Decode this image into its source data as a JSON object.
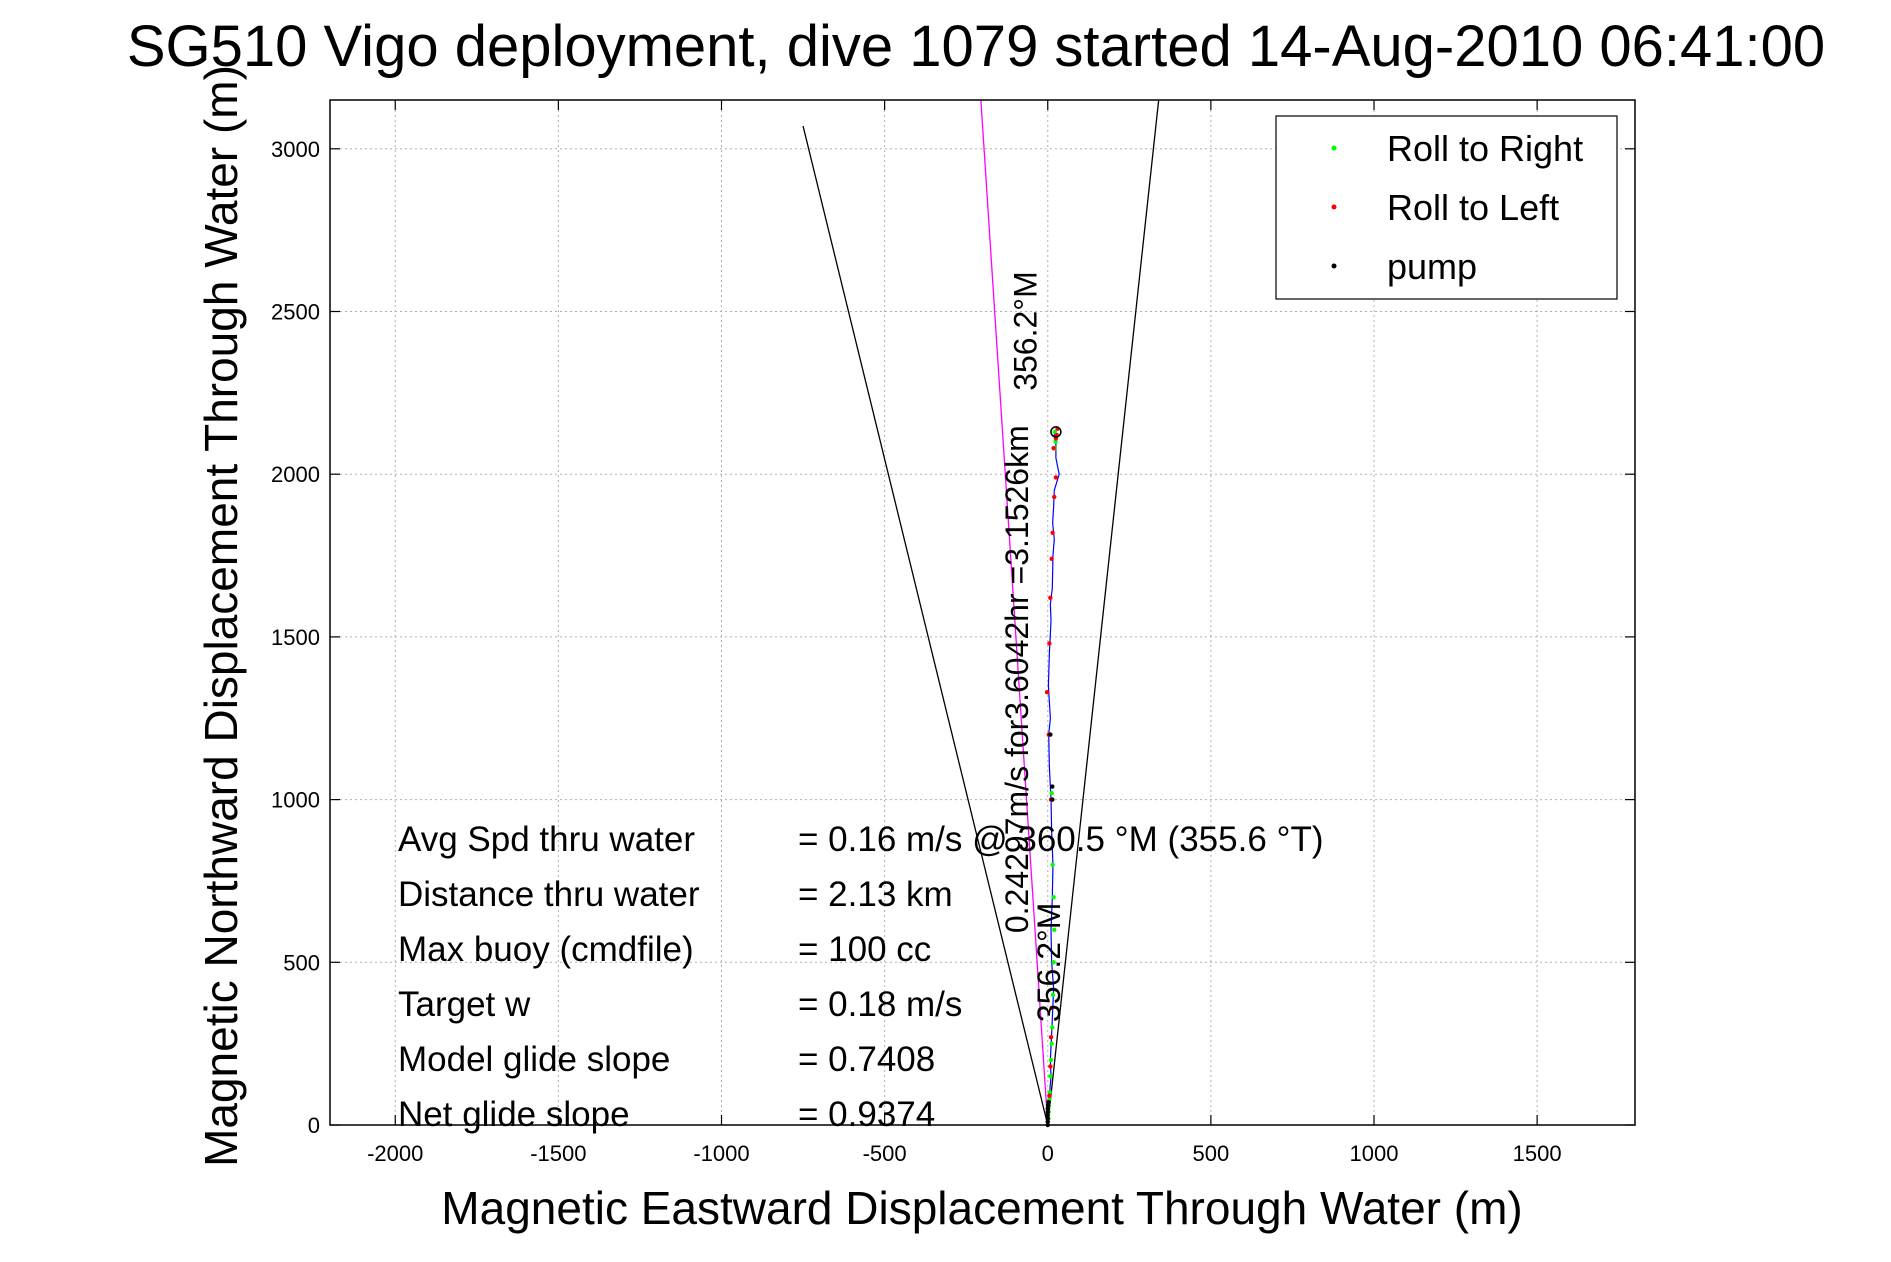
{
  "chart_data": {
    "type": "line",
    "title": "SG510 Vigo deployment, dive 1079 started 14-Aug-2010 06:41:00",
    "xlabel": "Magnetic Eastward Displacement Through Water (m)",
    "ylabel": "Magnetic Northward Displacement Through Water (m)",
    "xlim": [
      -2200,
      1800
    ],
    "ylim": [
      0,
      3150
    ],
    "xticks": [
      -2000,
      -1500,
      -1000,
      -500,
      0,
      500,
      1000,
      1500
    ],
    "yticks": [
      0,
      500,
      1000,
      1500,
      2000,
      2500,
      3000
    ],
    "xtick_labels": [
      "-2000",
      "-1500",
      "-1000",
      "-500",
      "0",
      "500",
      "1000",
      "1500"
    ],
    "ytick_labels": [
      "0",
      "500",
      "1000",
      "1500",
      "2000",
      "2500",
      "3000"
    ],
    "grid": true,
    "legend_position": "top-right",
    "legend": [
      {
        "label": "Roll to Right",
        "color": "#00ff00"
      },
      {
        "label": "Roll to Left",
        "color": "#ff0000"
      },
      {
        "label": "pump",
        "color": "#000000"
      }
    ],
    "track": {
      "name": "",
      "color": "#0000ff",
      "x": [
        0,
        3,
        6,
        10,
        8,
        12,
        15,
        18,
        12,
        10,
        14,
        16,
        12,
        10,
        5,
        3,
        8,
        5,
        2,
        5,
        10,
        8,
        14,
        16,
        20,
        15,
        18,
        20,
        35,
        25,
        25,
        20,
        25,
        28
      ],
      "y": [
        0,
        50,
        100,
        150,
        200,
        280,
        350,
        420,
        500,
        600,
        700,
        800,
        900,
        1000,
        1100,
        1200,
        1250,
        1300,
        1350,
        1450,
        1550,
        1600,
        1650,
        1750,
        1800,
        1850,
        1900,
        1950,
        2000,
        2050,
        2100,
        2120,
        2130,
        2120
      ]
    },
    "roll_to_right": {
      "x": [
        0,
        2,
        3,
        4,
        5,
        6,
        8,
        10,
        12,
        14,
        16,
        18,
        20,
        18,
        15,
        12,
        22,
        24,
        22
      ],
      "y": [
        0,
        20,
        40,
        60,
        80,
        100,
        150,
        200,
        250,
        300,
        400,
        500,
        600,
        700,
        800,
        1020,
        2080,
        2100,
        2130
      ]
    },
    "roll_to_left": {
      "x": [
        0,
        5,
        8,
        10,
        12,
        10,
        3,
        -2,
        5,
        8,
        12,
        15,
        20,
        25,
        18,
        28,
        30,
        25
      ],
      "y": [
        10,
        90,
        180,
        270,
        360,
        1000,
        1200,
        1330,
        1480,
        1620,
        1740,
        1820,
        1930,
        1990,
        2080,
        2120,
        2140,
        2110
      ]
    },
    "pump": {
      "x": [
        0,
        0,
        0,
        0,
        0,
        0,
        1,
        2,
        14,
        14,
        8
      ],
      "y": [
        0,
        10,
        20,
        30,
        40,
        50,
        60,
        70,
        1000,
        1040,
        1200
      ]
    },
    "reference_lines": [
      {
        "name": "",
        "color": "#ff00ff",
        "x": [
          0,
          -205
        ],
        "y": [
          0,
          3150
        ]
      },
      {
        "name": "",
        "color": "#000000",
        "x": [
          0,
          -750
        ],
        "y": [
          0,
          3070
        ]
      },
      {
        "name": "",
        "color": "#000000",
        "x": [
          0,
          340
        ],
        "y": [
          0,
          3150
        ]
      }
    ],
    "rotated_labels": [
      {
        "text": "356.2°M",
        "x": -35,
        "y": 2440
      },
      {
        "text": "0.24297m/s for3.6042hr =3.1526km",
        "x": -60,
        "y": 1370
      },
      {
        "text": "356.2°M",
        "x": 38,
        "y": 500
      }
    ],
    "annotations": [
      {
        "label": "Avg Spd thru water",
        "value": "=  0.16 m/s @ 360.5 °M (355.6 °T)"
      },
      {
        "label": "Distance thru water",
        "value": "=  2.13 km"
      },
      {
        "label": "Max buoy (cmdfile)",
        "value": "= 100 cc"
      },
      {
        "label": "Target w",
        "value": "= 0.18 m/s"
      },
      {
        "label": "Model glide slope",
        "value": "= 0.7408"
      },
      {
        "label": "Net glide slope",
        "value": "= 0.9374"
      }
    ]
  }
}
